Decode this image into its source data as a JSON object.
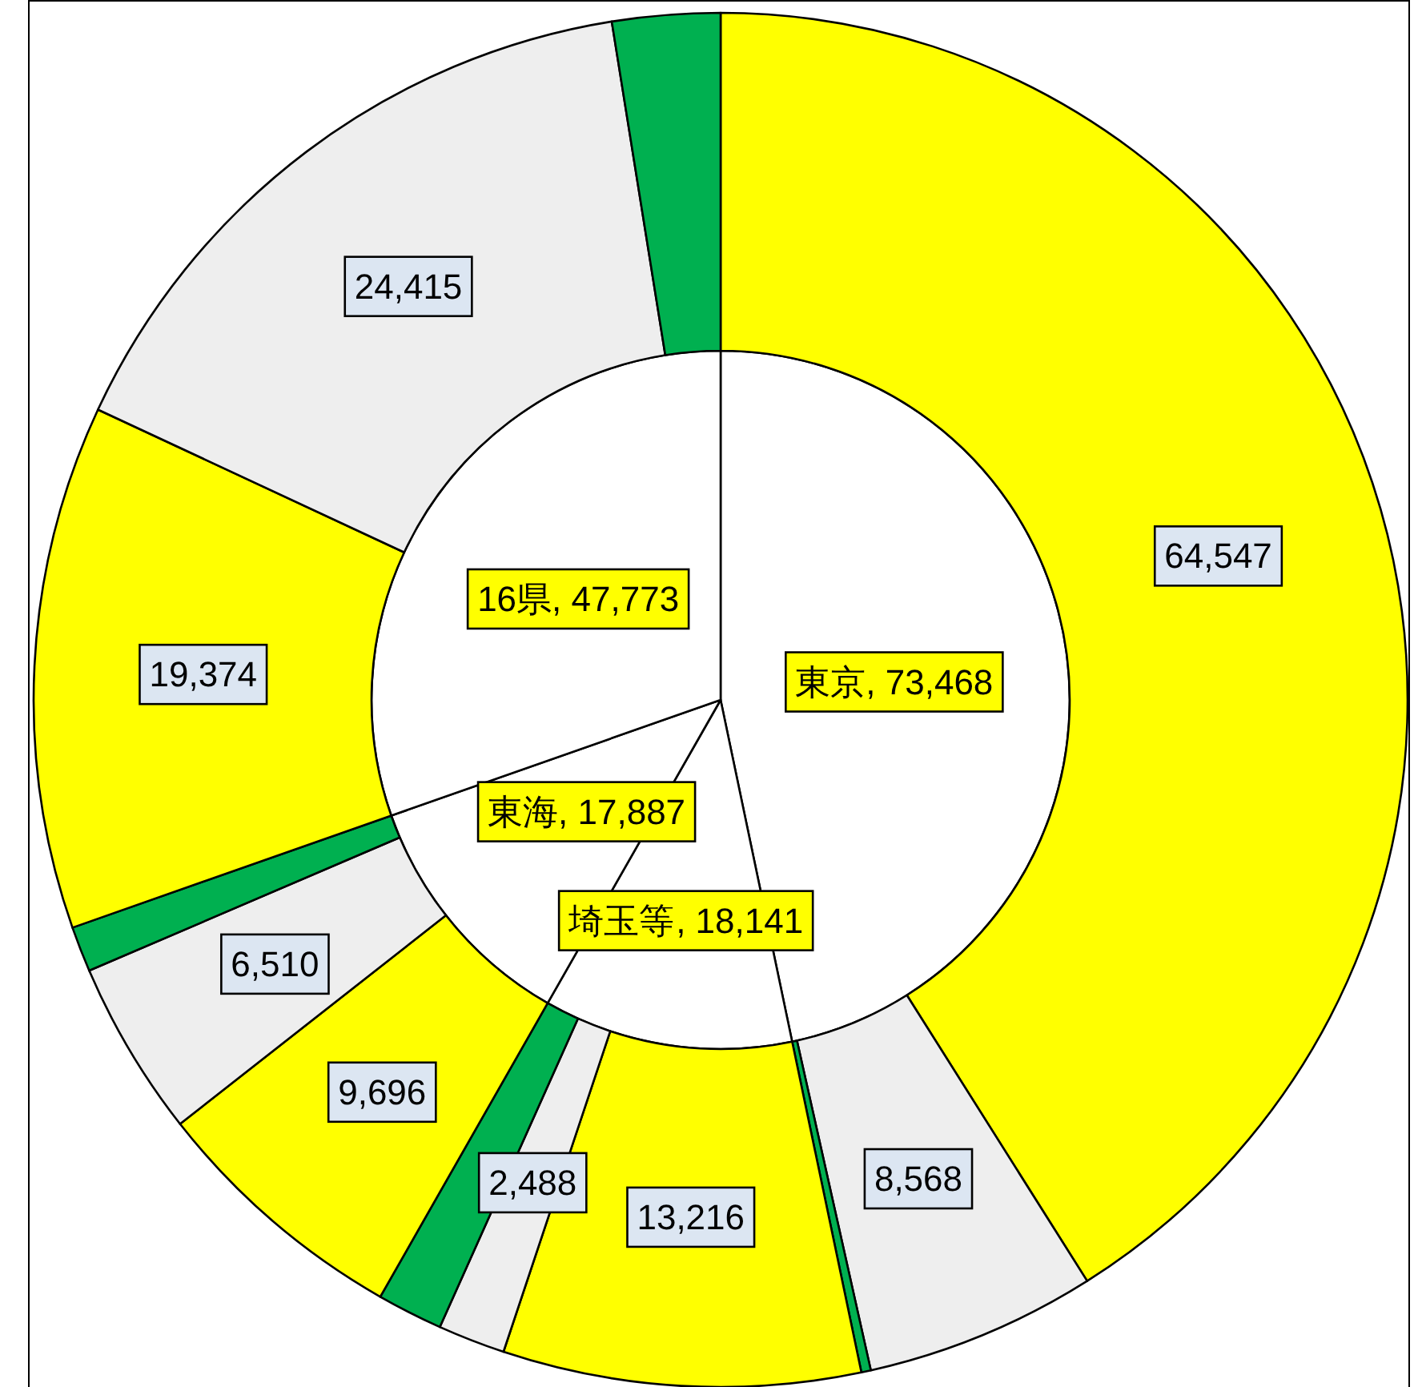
{
  "chart_data": [
    {
      "type": "pie",
      "categories": [
        "東京",
        "埼玉等",
        "東海",
        "16県"
      ],
      "values": [
        73468,
        18141,
        17887,
        47773
      ],
      "colors": [
        "#ffffff",
        "#ffffff",
        "#ffffff",
        "#ffffff"
      ],
      "value_labels": [
        ", 73,468",
        ", 18,141",
        ", 17,887",
        ", 47,773"
      ]
    },
    {
      "type": "donut",
      "categories": [
        null,
        null,
        null,
        null,
        null,
        null,
        null,
        null,
        null,
        null,
        null,
        null
      ],
      "values": [
        64547,
        8568,
        353,
        13216,
        2488,
        2437,
        9696,
        6510,
        1681,
        19374,
        24415,
        3984
      ],
      "colors": [
        "#ffff00",
        "#eeeeee",
        "#00b050",
        "#ffff00",
        "#eeeeee",
        "#00b050",
        "#ffff00",
        "#eeeeee",
        "#00b050",
        "#ffff00",
        "#eeeeee",
        "#00b050"
      ],
      "value_labels": [
        "64,547",
        "8,568",
        null,
        "13,216",
        "2,488",
        null,
        "9,696",
        "6,510",
        null,
        "19,374",
        "24,415",
        null
      ]
    }
  ]
}
